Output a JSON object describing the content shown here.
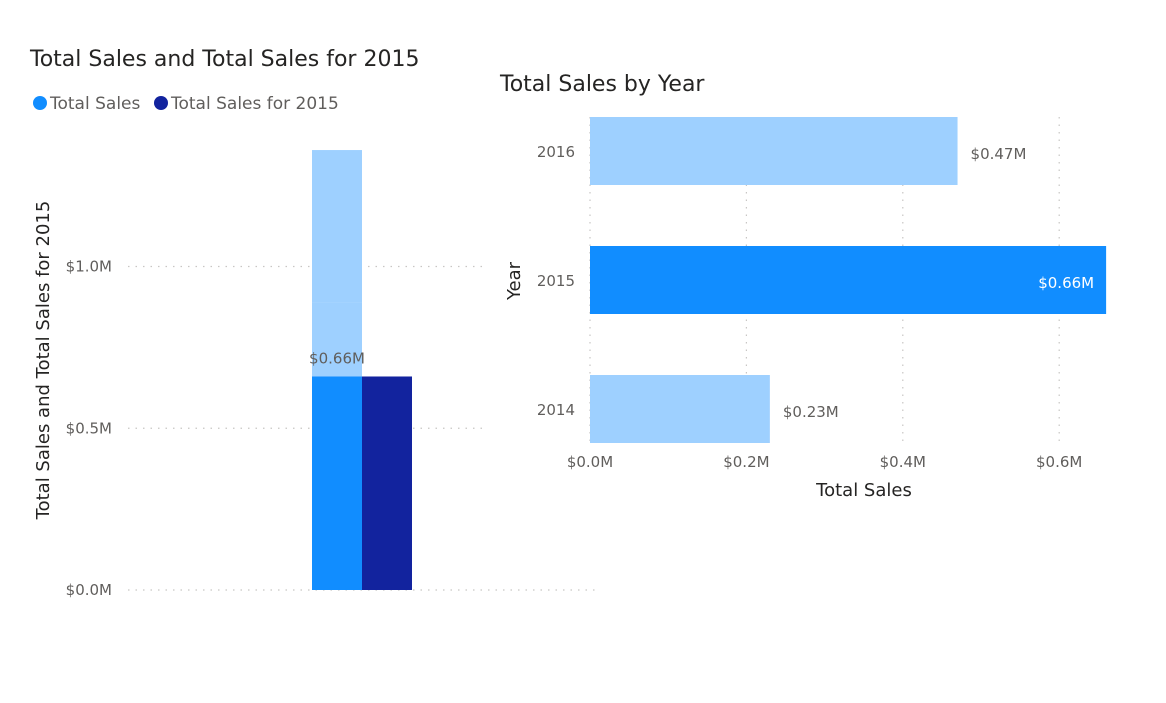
{
  "chart_data": [
    {
      "type": "bar",
      "stacked": true,
      "title": "Total Sales and Total Sales for 2015",
      "ylabel": "Total Sales and Total Sales for 2015",
      "xlabel": "",
      "legend": "top-left",
      "legend_entries": [
        "Total Sales",
        "Total Sales for 2015"
      ],
      "ylim": [
        0,
        1.35
      ],
      "yticks": [
        0,
        0.5,
        1.0
      ],
      "ytick_labels": [
        "$0.0M",
        "$0.5M",
        "$1.0M"
      ],
      "grid": true,
      "bars": [
        {
          "name": "Total Sales",
          "segments": [
            {
              "year": "2014",
              "value": 0.23,
              "color": "#9ed0ff"
            },
            {
              "year": "2015",
              "value": 0.66,
              "color": "#118dff"
            },
            {
              "year": "2016",
              "value": 0.47,
              "color": "#9ed0ff"
            }
          ]
        },
        {
          "name": "Total Sales for 2015",
          "segments": [
            {
              "year": "2015",
              "value": 0.66,
              "color": "#12239e"
            }
          ]
        }
      ],
      "data_label": "$0.66M",
      "colors": {
        "Total Sales": "#118dff",
        "Total Sales for 2015": "#12239e",
        "other_years": "#9ed0ff"
      }
    },
    {
      "type": "bar",
      "orientation": "horizontal",
      "title": "Total Sales by Year",
      "xlabel": "Total Sales",
      "ylabel": "Year",
      "categories": [
        "2016",
        "2015",
        "2014"
      ],
      "values": [
        0.47,
        0.66,
        0.23
      ],
      "value_labels": [
        "$0.47M",
        "$0.66M",
        "$0.23M"
      ],
      "highlight": "2015",
      "xlim": [
        0,
        0.66
      ],
      "xticks": [
        0,
        0.2,
        0.4,
        0.6
      ],
      "xtick_labels": [
        "$0.0M",
        "$0.2M",
        "$0.4M",
        "$0.6M"
      ],
      "grid": true,
      "colors": {
        "highlight": "#118dff",
        "normal": "#9ed0ff"
      }
    }
  ]
}
